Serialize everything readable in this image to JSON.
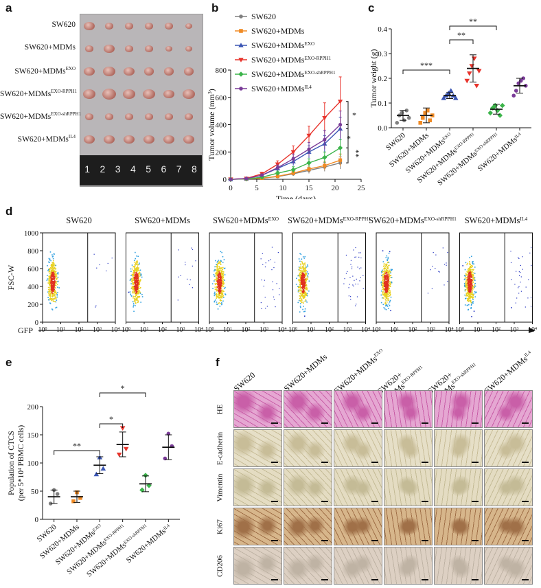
{
  "panel_labels": {
    "a": "a",
    "b": "b",
    "c": "c",
    "d": "d",
    "e": "e",
    "f": "f"
  },
  "groups": [
    {
      "base": "SW620",
      "sup": ""
    },
    {
      "base": "SW620+MDMs",
      "sup": ""
    },
    {
      "base": "SW620+MDMs",
      "sup": "EXO"
    },
    {
      "base": "SW620+MDMs",
      "sup": "EXO-RPPH1"
    },
    {
      "base": "SW620+MDMs",
      "sup": "EXO-shRPPH1"
    },
    {
      "base": "SW620+MDMs",
      "sup": "IL4"
    }
  ],
  "ruler_numbers": [
    "1",
    "2",
    "3",
    "4",
    "5",
    "6",
    "7",
    "8"
  ],
  "colors": {
    "SW620": "#808080",
    "MDMs": "#f08a24",
    "EXO": "#3a55b4",
    "RPPH1": "#e8342c",
    "shRPPH1": "#3cb44b",
    "IL4": "#7a3c98",
    "flow_hi": "#e03020",
    "flow_mid": "#e8d020",
    "flow_lo": "#30a0e0",
    "flow_bg": "#2030c0"
  },
  "chart_data": [
    {
      "id": "b",
      "type": "line",
      "title": "",
      "xlabel": "Time (days)",
      "ylabel": "Tumor volume (mm3)",
      "ylabel_base": "Tumor volume (mm",
      "ylabel_sup": "3",
      "ylabel_end": ")",
      "xlim": [
        0,
        25
      ],
      "ylim": [
        0,
        800
      ],
      "xticks": [
        "0",
        "5",
        "10",
        "15",
        "20",
        "25"
      ],
      "yticks": [
        "0",
        "200",
        "400",
        "600",
        "800"
      ],
      "x": [
        0,
        3,
        6,
        9,
        12,
        15,
        18,
        21
      ],
      "series": [
        {
          "name": "SW620",
          "color": "#808080",
          "values": [
            0,
            2,
            8,
            20,
            40,
            65,
            90,
            120
          ],
          "err": [
            0,
            1,
            3,
            8,
            15,
            22,
            32,
            45
          ]
        },
        {
          "name": "SW620+MDMs",
          "color": "#f08a24",
          "values": [
            0,
            2,
            8,
            22,
            45,
            75,
            100,
            140
          ],
          "err": [
            0,
            1,
            3,
            8,
            15,
            22,
            32,
            45
          ]
        },
        {
          "name": "SW620+MDMs EXO",
          "color": "#3a55b4",
          "values": [
            0,
            5,
            30,
            80,
            130,
            200,
            260,
            370
          ],
          "err": [
            0,
            2,
            10,
            20,
            30,
            45,
            60,
            85
          ]
        },
        {
          "name": "SW620+MDMs EXO-RPPH1",
          "color": "#e8342c",
          "values": [
            0,
            6,
            40,
            110,
            200,
            320,
            450,
            570
          ],
          "err": [
            0,
            3,
            12,
            25,
            45,
            70,
            110,
            180
          ]
        },
        {
          "name": "SW620+MDMs EXO-shRPPH1",
          "color": "#3cb44b",
          "values": [
            0,
            3,
            15,
            45,
            70,
            120,
            160,
            230
          ],
          "err": [
            0,
            2,
            6,
            15,
            22,
            30,
            40,
            60
          ]
        },
        {
          "name": "SW620+MDMs IL4",
          "color": "#7a3c98",
          "values": [
            0,
            5,
            30,
            85,
            150,
            220,
            290,
            400
          ],
          "err": [
            0,
            2,
            10,
            20,
            35,
            50,
            70,
            100
          ]
        }
      ],
      "legend": [
        {
          "base": "SW620",
          "sup": ""
        },
        {
          "base": "SW620+MDMs",
          "sup": ""
        },
        {
          "base": "SW620+MDMs",
          "sup": "EXO"
        },
        {
          "base": "SW620+MDMs",
          "sup": "EXO-RPPH1"
        },
        {
          "base": "SW620+MDMs",
          "sup": "EXO-shRPPH1"
        },
        {
          "base": "SW620+MDMs",
          "sup": "IL4"
        }
      ],
      "significance": [
        "*",
        "*",
        "**"
      ]
    },
    {
      "id": "c",
      "type": "scatter",
      "ylabel": "Tumor weight (g)",
      "ylim": [
        0,
        0.4
      ],
      "yticks": [
        "0.0",
        "0.1",
        "0.2",
        "0.3",
        "0.4"
      ],
      "categories": [
        "SW620",
        "SW620+MDMs",
        "SW620+MDMs EXO",
        "SW620+MDMs EXO-RPPH1",
        "SW620+MDMs EXO-shRPPH1",
        "SW620+MDMs IL4"
      ],
      "means": [
        0.05,
        0.05,
        0.13,
        0.24,
        0.075,
        0.17
      ],
      "sd": [
        0.02,
        0.03,
        0.012,
        0.055,
        0.02,
        0.03
      ],
      "points": [
        [
          0.02,
          0.05,
          0.06,
          0.03,
          0.07,
          0.04
        ],
        [
          0.02,
          0.04,
          0.06,
          0.07,
          0.03,
          0.05
        ],
        [
          0.12,
          0.13,
          0.14,
          0.15,
          0.13,
          0.12
        ],
        [
          0.19,
          0.22,
          0.25,
          0.28,
          0.17,
          0.23
        ],
        [
          0.06,
          0.08,
          0.09,
          0.07,
          0.05,
          0.09
        ],
        [
          0.13,
          0.15,
          0.18,
          0.19,
          0.2,
          0.17
        ]
      ],
      "comparisons": [
        {
          "pair": [
            0,
            2
          ],
          "label": "***"
        },
        {
          "pair": [
            2,
            3
          ],
          "label": "**"
        },
        {
          "pair": [
            2,
            4
          ],
          "label": "**"
        }
      ]
    },
    {
      "id": "d",
      "type": "scatter-flow",
      "ylabel": "FSC-W",
      "xlabel": "GFP",
      "yticks": [
        "0",
        "200",
        "400",
        "600",
        "800",
        "1000"
      ],
      "xticks": [
        {
          "b": "10",
          "s": "0"
        },
        {
          "b": "10",
          "s": "1"
        },
        {
          "b": "10",
          "s": "2"
        },
        {
          "b": "10",
          "s": "3"
        },
        {
          "b": "10",
          "s": "4"
        }
      ],
      "titles": [
        {
          "base": "SW620",
          "sup": ""
        },
        {
          "base": "SW620+MDMs",
          "sup": ""
        },
        {
          "base": "SW620+MDMs",
          "sup": "EXO"
        },
        {
          "base": "SW620+MDMs",
          "sup": "EXO-RPPH1"
        },
        {
          "base": "SW620+MDMs",
          "sup": "EXO-shRPPH1"
        },
        {
          "base": "SW620+MDMs",
          "sup": "IL4"
        }
      ],
      "gfp_positive_density": [
        0.2,
        0.35,
        0.7,
        1.0,
        0.4,
        0.8
      ]
    },
    {
      "id": "e",
      "type": "scatter",
      "ylabel_line1": "Population of CTCS",
      "ylabel_line2_pre": "(per 5*10",
      "ylabel_line2_sup": "4",
      "ylabel_line2_post": " PBMC cells)",
      "ylim": [
        0,
        200
      ],
      "yticks": [
        "0",
        "50",
        "100",
        "150",
        "200"
      ],
      "categories": [
        "SW620",
        "SW620+MDMs",
        "SW620+MDMs EXO",
        "SW620+MDMs EXO-RPPH1",
        "SW620+MDMs EXO-shRPPH1",
        "SW620+MDMs IL4"
      ],
      "means": [
        40,
        40,
        96,
        133,
        63,
        128
      ],
      "sd": [
        12,
        10,
        15,
        22,
        14,
        22
      ],
      "points": [
        [
          28,
          52,
          45
        ],
        [
          32,
          48,
          38
        ],
        [
          80,
          110,
          90
        ],
        [
          115,
          162,
          125
        ],
        [
          52,
          78,
          60
        ],
        [
          108,
          152,
          130
        ]
      ],
      "comparisons": [
        {
          "pair": [
            0,
            2
          ],
          "label": "**"
        },
        {
          "pair": [
            2,
            3
          ],
          "label": "*"
        },
        {
          "pair": [
            2,
            4
          ],
          "label": "*"
        }
      ]
    }
  ],
  "histology": {
    "columns": [
      {
        "base": "SW620",
        "sup": ""
      },
      {
        "base": "SW620+MDMs",
        "sup": ""
      },
      {
        "base": "SW620+MDMs",
        "sup": "EXO"
      },
      {
        "base": "SW620+",
        "base2": "MDMs",
        "sup": "EXO-RPPH1"
      },
      {
        "base": "SW620+",
        "base2": "MDMs",
        "sup": "EXO-shRPPH1"
      },
      {
        "base": "SW620+MDMs",
        "sup": "IL4"
      }
    ],
    "rows": [
      "HE",
      "E-cadherin",
      "Vimentin",
      "Ki67",
      "CD206"
    ]
  }
}
